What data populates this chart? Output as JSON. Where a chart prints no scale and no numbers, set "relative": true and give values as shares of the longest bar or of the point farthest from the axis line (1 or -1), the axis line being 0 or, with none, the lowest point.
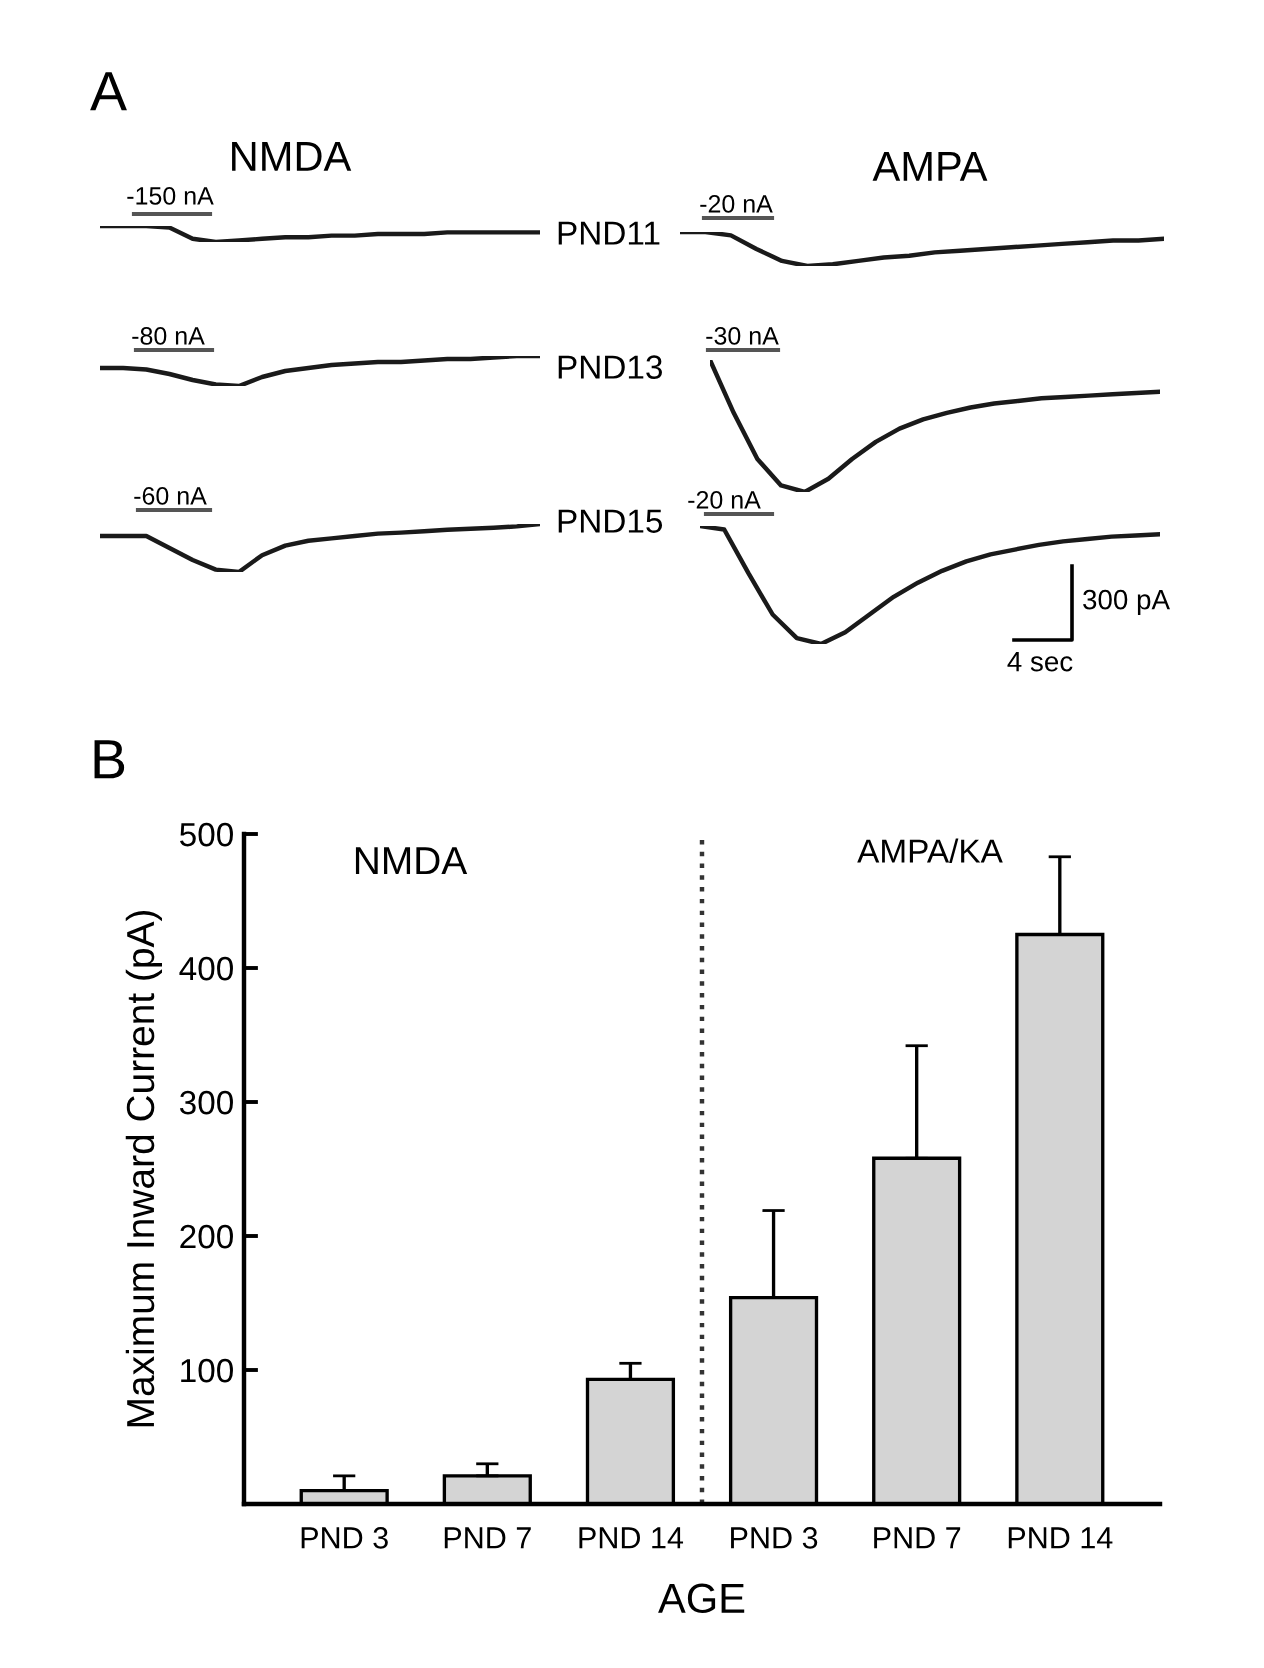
{
  "chart_data": [
    {
      "type": "line",
      "relative": true,
      "title": "NMDA",
      "annotations": [
        "A",
        "-150 nA",
        "PND11"
      ],
      "color": "#1a1a1a",
      "categories": [
        null,
        null,
        null,
        null,
        null,
        null,
        null,
        null,
        null,
        null,
        null,
        null,
        null,
        null,
        null,
        null,
        null,
        null,
        null,
        null
      ],
      "values": [
        1,
        1,
        1,
        0.9,
        0.2,
        0,
        0.1,
        0.2,
        0.3,
        0.3,
        0.4,
        0.4,
        0.5,
        0.5,
        0.5,
        0.6,
        0.6,
        0.6,
        0.6,
        0.6
      ]
    },
    {
      "type": "line",
      "relative": true,
      "title": "AMPA",
      "annotations": [
        "-20 nA"
      ],
      "color": "#1a1a1a",
      "categories": [
        null,
        null,
        null,
        null,
        null,
        null,
        null,
        null,
        null,
        null,
        null,
        null,
        null,
        null,
        null,
        null,
        null,
        null,
        null,
        null
      ],
      "values": [
        1,
        1,
        0.9,
        0.5,
        0.15,
        0,
        0.05,
        0.15,
        0.25,
        0.3,
        0.4,
        0.45,
        0.5,
        0.55,
        0.6,
        0.65,
        0.7,
        0.75,
        0.75,
        0.8
      ]
    },
    {
      "type": "line",
      "relative": true,
      "annotations": [
        "-80 nA",
        "PND13"
      ],
      "color": "#1a1a1a",
      "categories": [
        null,
        null,
        null,
        null,
        null,
        null,
        null,
        null,
        null,
        null,
        null,
        null,
        null,
        null,
        null,
        null,
        null,
        null,
        null,
        null
      ],
      "values": [
        0.6,
        0.6,
        0.55,
        0.4,
        0.2,
        0.05,
        0,
        0.3,
        0.5,
        0.6,
        0.7,
        0.75,
        0.8,
        0.8,
        0.85,
        0.9,
        0.9,
        0.95,
        1,
        1
      ]
    },
    {
      "type": "line",
      "relative": true,
      "annotations": [
        "-30 nA"
      ],
      "color": "#1a1a1a",
      "categories": [
        null,
        null,
        null,
        null,
        null,
        null,
        null,
        null,
        null,
        null,
        null,
        null,
        null,
        null,
        null,
        null,
        null,
        null,
        null,
        null
      ],
      "values": [
        1,
        0.6,
        0.25,
        0.05,
        0,
        0.1,
        0.25,
        0.38,
        0.48,
        0.55,
        0.6,
        0.64,
        0.67,
        0.69,
        0.71,
        0.72,
        0.73,
        0.74,
        0.75,
        0.76
      ]
    },
    {
      "type": "line",
      "relative": true,
      "annotations": [
        "-60 nA",
        "PND15"
      ],
      "color": "#1a1a1a",
      "categories": [
        null,
        null,
        null,
        null,
        null,
        null,
        null,
        null,
        null,
        null,
        null,
        null,
        null,
        null,
        null,
        null,
        null,
        null,
        null,
        null
      ],
      "values": [
        0.75,
        0.75,
        0.75,
        0.5,
        0.25,
        0.05,
        0,
        0.35,
        0.55,
        0.65,
        0.7,
        0.75,
        0.8,
        0.82,
        0.85,
        0.88,
        0.9,
        0.92,
        0.95,
        1
      ]
    },
    {
      "type": "line",
      "relative": true,
      "annotations": [
        "-20 nA",
        "300 pA",
        "4 sec"
      ],
      "color": "#1a1a1a",
      "categories": [
        null,
        null,
        null,
        null,
        null,
        null,
        null,
        null,
        null,
        null,
        null,
        null,
        null,
        null,
        null,
        null,
        null,
        null,
        null,
        null
      ],
      "values": [
        1,
        0.97,
        0.6,
        0.25,
        0.05,
        0,
        0.1,
        0.25,
        0.4,
        0.52,
        0.62,
        0.7,
        0.76,
        0.8,
        0.84,
        0.87,
        0.89,
        0.91,
        0.92,
        0.93
      ]
    },
    {
      "type": "bar",
      "annotations": [
        "B",
        "NMDA",
        "AMPA/KA"
      ],
      "xlabel": "AGE",
      "ylabel": "Maximum Inward Current (pA)",
      "categories": [
        "PND 3",
        "PND 7",
        "PND 14",
        "PND 3",
        "PND 7",
        "PND 14"
      ],
      "values": [
        10,
        21,
        93,
        154,
        258,
        425
      ],
      "errors": [
        [
          10,
          21
        ],
        [
          21,
          30
        ],
        [
          93,
          105
        ],
        [
          154,
          219
        ],
        [
          258,
          342
        ],
        [
          425,
          483
        ]
      ],
      "color": "#d4d4d4",
      "ylim": [
        0,
        500
      ],
      "yticks": [
        100,
        200,
        300,
        400,
        500
      ]
    }
  ]
}
